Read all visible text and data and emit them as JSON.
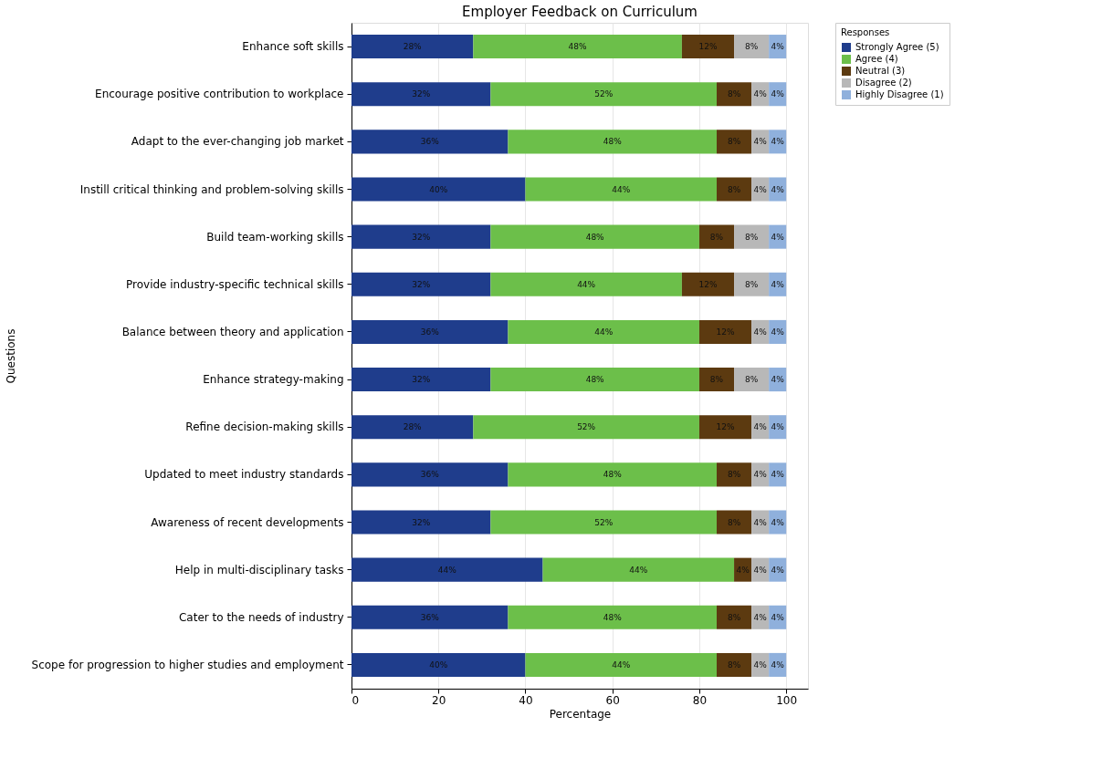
{
  "chart_data": {
    "type": "bar",
    "orientation": "horizontal",
    "stacked": true,
    "title": "Employer Feedback on Curriculum",
    "xlabel": "Percentage",
    "ylabel": "Questions",
    "legend_title": "Responses",
    "legend": "top right",
    "grid": "x",
    "xlim": [
      0,
      105
    ],
    "xticks": [
      0,
      20,
      40,
      60,
      80,
      100
    ],
    "categories": [
      "Enhance soft skills",
      "Encourage positive contribution to workplace",
      "Adapt to the ever-changing job market",
      "Instill critical thinking and problem-solving skills",
      "Build team-working skills",
      "Provide industry-specific technical skills",
      "Balance between theory and application",
      "Enhance strategy-making",
      "Refine decision-making skills",
      "Updated to meet industry standards",
      "Awareness of recent developments",
      "Help in multi-disciplinary tasks",
      "Cater to the needs of industry",
      "Scope for progression to higher studies and employment"
    ],
    "series": [
      {
        "name": "Strongly Agree (5)",
        "color": "#1f3d8c",
        "values": [
          28,
          32,
          36,
          40,
          32,
          32,
          36,
          32,
          28,
          36,
          32,
          44,
          36,
          40
        ],
        "value_labels": [
          "28%",
          "32%",
          "36%",
          "40%",
          "32%",
          "32%",
          "36%",
          "32%",
          "28%",
          "36%",
          "32%",
          "44%",
          "36%",
          "40%"
        ]
      },
      {
        "name": "Agree (4)",
        "color": "#6cbf4a",
        "values": [
          48,
          52,
          48,
          44,
          48,
          44,
          44,
          48,
          52,
          48,
          52,
          44,
          48,
          44
        ],
        "value_labels": [
          "48%",
          "52%",
          "48%",
          "44%",
          "48%",
          "44%",
          "44%",
          "48%",
          "52%",
          "48%",
          "52%",
          "44%",
          "48%",
          "44%"
        ]
      },
      {
        "name": "Neutral (3)",
        "color": "#5c3a10",
        "values": [
          12,
          8,
          8,
          8,
          8,
          12,
          12,
          8,
          12,
          8,
          8,
          4,
          8,
          8
        ],
        "value_labels": [
          "12%",
          "8%",
          "8%",
          "8%",
          "8%",
          "12%",
          "12%",
          "8%",
          "12%",
          "8%",
          "8%",
          "4%",
          "8%",
          "8%"
        ]
      },
      {
        "name": "Disagree (2)",
        "color": "#b8b8b8",
        "values": [
          8,
          4,
          4,
          4,
          8,
          8,
          4,
          8,
          4,
          4,
          4,
          4,
          4,
          4
        ],
        "value_labels": [
          "8%",
          "4%",
          "4%",
          "4%",
          "8%",
          "8%",
          "4%",
          "8%",
          "4%",
          "4%",
          "4%",
          "4%",
          "4%",
          "4%"
        ]
      },
      {
        "name": "Highly Disagree (1)",
        "color": "#8fb0dc",
        "values": [
          4,
          4,
          4,
          4,
          4,
          4,
          4,
          4,
          4,
          4,
          4,
          4,
          4,
          4
        ],
        "value_labels": [
          "4%",
          "4%",
          "4%",
          "4%",
          "4%",
          "4%",
          "4%",
          "4%",
          "4%",
          "4%",
          "4%",
          "4%",
          "4%",
          "4%"
        ]
      }
    ]
  }
}
